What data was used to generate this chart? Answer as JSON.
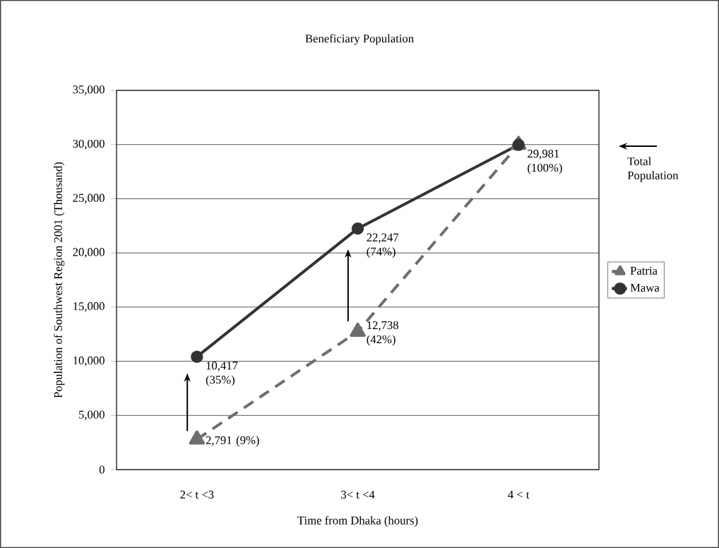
{
  "chart_data": {
    "type": "line",
    "title": "Beneficiary Population",
    "xlabel": "Time from  Dhaka (hours)",
    "ylabel": "Population of Southwest Region 2001 (Thousand)",
    "categories": [
      "2< t <3",
      "3< t <4",
      "4 < t"
    ],
    "series": [
      {
        "name": "Patria",
        "color": "#6e6e6e",
        "marker": "triangle",
        "line_style": "dashed",
        "values": [
          2791,
          12738,
          29981
        ],
        "value_labels": [
          "2,791 (9%)",
          "12,738 (42%)",
          null
        ]
      },
      {
        "name": "Mawa",
        "color": "#333333",
        "marker": "circle",
        "line_style": "solid",
        "values": [
          10417,
          22247,
          29981
        ],
        "value_labels": [
          "10,417 (35%)",
          "22,247 (74%)",
          "29,981 (100%)"
        ]
      }
    ],
    "ylim": [
      0,
      35000
    ],
    "yticks": [
      {
        "value": 0,
        "label": "0"
      },
      {
        "value": 5000,
        "label": "5,000"
      },
      {
        "value": 10000,
        "label": "10,000"
      },
      {
        "value": 15000,
        "label": "15,000"
      },
      {
        "value": 20000,
        "label": "20,000"
      },
      {
        "value": 25000,
        "label": "25,000"
      },
      {
        "value": 30000,
        "label": "30,000"
      },
      {
        "value": 35000,
        "label": "35,000"
      }
    ],
    "grid": "y",
    "legend": "right",
    "annotations": [
      "Total Population"
    ]
  }
}
